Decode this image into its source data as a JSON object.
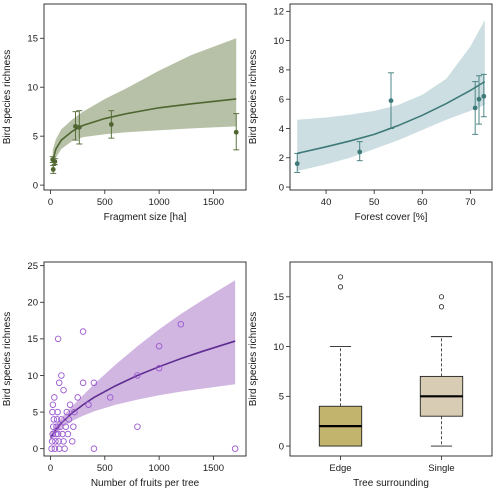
{
  "chart_data": [
    {
      "type": "scatter",
      "xlabel": "Fragment size [ha]",
      "ylabel": "Bird species richness",
      "xlim": [
        -60,
        1800
      ],
      "ylim": [
        -0.5,
        18.5
      ],
      "xticks": [
        0,
        500,
        1000,
        1500
      ],
      "yticks": [
        0,
        5,
        10,
        15
      ],
      "colors": {
        "point": "#4f6630",
        "line": "#4f6630",
        "band": "#aab698"
      },
      "points": [
        {
          "x": 20,
          "y": 2.6,
          "lo": 2.3,
          "hi": 2.9
        },
        {
          "x": 25,
          "y": 1.6,
          "lo": 1.2,
          "hi": 2.0
        },
        {
          "x": 40,
          "y": 2.4,
          "lo": 2.1,
          "hi": 2.7
        },
        {
          "x": 230,
          "y": 6.0,
          "lo": 4.6,
          "hi": 7.5
        },
        {
          "x": 265,
          "y": 5.9,
          "lo": 4.2,
          "hi": 7.6
        },
        {
          "x": 560,
          "y": 6.2,
          "lo": 4.8,
          "hi": 7.6
        },
        {
          "x": 1710,
          "y": 5.4,
          "lo": 3.6,
          "hi": 7.3
        }
      ],
      "fit": {
        "x": [
          20,
          50,
          100,
          200,
          300,
          500,
          700,
          1000,
          1300,
          1710
        ],
        "y": [
          2.5,
          3.7,
          4.6,
          5.5,
          6.1,
          6.8,
          7.3,
          7.9,
          8.3,
          8.8
        ],
        "lower": [
          1.6,
          2.8,
          3.7,
          4.5,
          4.9,
          5.2,
          5.4,
          5.6,
          5.8,
          6.0
        ],
        "upper": [
          3.6,
          4.7,
          5.7,
          6.7,
          7.5,
          8.8,
          9.9,
          11.7,
          13.3,
          15.0
        ]
      }
    },
    {
      "type": "scatter",
      "xlabel": "Forest cover [%]",
      "ylabel": "Bird species richness",
      "xlim": [
        32.5,
        74.5
      ],
      "ylim": [
        -0.2,
        12.5
      ],
      "xticks": [
        40,
        50,
        60,
        70
      ],
      "yticks": [
        0,
        2,
        4,
        6,
        8,
        10,
        12
      ],
      "colors": {
        "point": "#3e7a7a",
        "line": "#3e7a7a",
        "band": "#c3d8dc"
      },
      "points": [
        {
          "x": 34,
          "y": 1.6,
          "lo": 1.0,
          "hi": 2.3
        },
        {
          "x": 47,
          "y": 2.4,
          "lo": 1.8,
          "hi": 3.1
        },
        {
          "x": 53.5,
          "y": 5.9,
          "lo": 4.0,
          "hi": 7.8
        },
        {
          "x": 71,
          "y": 5.4,
          "lo": 3.6,
          "hi": 7.2
        },
        {
          "x": 71.8,
          "y": 6.0,
          "lo": 4.3,
          "hi": 7.6
        },
        {
          "x": 72.8,
          "y": 6.2,
          "lo": 4.8,
          "hi": 7.7
        }
      ],
      "fit": {
        "x": [
          34,
          40,
          45,
          50,
          55,
          60,
          65,
          70,
          73
        ],
        "y": [
          2.3,
          2.75,
          3.15,
          3.6,
          4.2,
          4.9,
          5.7,
          6.6,
          7.2
        ],
        "lower": [
          1.1,
          1.55,
          2.0,
          2.6,
          3.2,
          3.9,
          4.6,
          5.2,
          5.6
        ],
        "upper": [
          4.6,
          4.75,
          4.95,
          5.2,
          5.6,
          6.3,
          7.4,
          9.6,
          11.4
        ]
      }
    },
    {
      "type": "scatter",
      "xlabel": "Number of fruits per tree",
      "ylabel": "Bird species richness",
      "xlim": [
        -60,
        1800
      ],
      "ylim": [
        -1,
        25.5
      ],
      "xticks": [
        0,
        500,
        1000,
        1500
      ],
      "yticks": [
        0,
        5,
        10,
        15,
        20,
        25
      ],
      "colors": {
        "point": "#9b59d0",
        "line": "#5e2c91",
        "band": "#c9a9dc"
      },
      "points": [
        {
          "x": 10,
          "y": 0
        },
        {
          "x": 15,
          "y": 1
        },
        {
          "x": 20,
          "y": 2
        },
        {
          "x": 25,
          "y": 3
        },
        {
          "x": 30,
          "y": 4
        },
        {
          "x": 18,
          "y": 5
        },
        {
          "x": 22,
          "y": 6
        },
        {
          "x": 35,
          "y": 7
        },
        {
          "x": 40,
          "y": 0
        },
        {
          "x": 45,
          "y": 1
        },
        {
          "x": 50,
          "y": 2
        },
        {
          "x": 55,
          "y": 3
        },
        {
          "x": 60,
          "y": 4
        },
        {
          "x": 65,
          "y": 5
        },
        {
          "x": 70,
          "y": 2
        },
        {
          "x": 75,
          "y": 1
        },
        {
          "x": 80,
          "y": 0
        },
        {
          "x": 90,
          "y": 3
        },
        {
          "x": 100,
          "y": 4
        },
        {
          "x": 110,
          "y": 2
        },
        {
          "x": 120,
          "y": 1
        },
        {
          "x": 130,
          "y": 0
        },
        {
          "x": 140,
          "y": 3
        },
        {
          "x": 150,
          "y": 5
        },
        {
          "x": 160,
          "y": 2
        },
        {
          "x": 170,
          "y": 4
        },
        {
          "x": 180,
          "y": 6
        },
        {
          "x": 200,
          "y": 1
        },
        {
          "x": 210,
          "y": 3
        },
        {
          "x": 220,
          "y": 5
        },
        {
          "x": 70,
          "y": 15
        },
        {
          "x": 100,
          "y": 10
        },
        {
          "x": 80,
          "y": 9
        },
        {
          "x": 120,
          "y": 8
        },
        {
          "x": 300,
          "y": 16
        },
        {
          "x": 300,
          "y": 9
        },
        {
          "x": 250,
          "y": 7
        },
        {
          "x": 350,
          "y": 6
        },
        {
          "x": 400,
          "y": 9
        },
        {
          "x": 400,
          "y": 0
        },
        {
          "x": 550,
          "y": 7
        },
        {
          "x": 800,
          "y": 10
        },
        {
          "x": 800,
          "y": 3
        },
        {
          "x": 1000,
          "y": 11
        },
        {
          "x": 1000,
          "y": 14
        },
        {
          "x": 1200,
          "y": 17
        },
        {
          "x": 1700,
          "y": 0
        }
      ],
      "fit": {
        "x": [
          0,
          50,
          100,
          200,
          300,
          400,
          600,
          800,
          1000,
          1200,
          1400,
          1700
        ],
        "y": [
          1.5,
          2.6,
          3.5,
          4.9,
          6.0,
          7.0,
          8.6,
          10.0,
          11.2,
          12.3,
          13.3,
          14.7
        ],
        "lower": [
          1.0,
          2.0,
          2.8,
          3.8,
          4.5,
          5.1,
          6.0,
          6.7,
          7.3,
          7.8,
          8.2,
          8.8
        ],
        "upper": [
          2.1,
          3.3,
          4.2,
          5.8,
          7.3,
          8.8,
          11.5,
          14.0,
          16.3,
          18.4,
          20.3,
          23.0
        ]
      }
    },
    {
      "type": "box",
      "xlabel": "Tree surrounding",
      "ylabel": "Bird species richness",
      "ylim": [
        -1,
        18.5
      ],
      "yticks": [
        0,
        5,
        10,
        15
      ],
      "categories": [
        "Edge",
        "Single"
      ],
      "colors": [
        "#c2b46c",
        "#d8ccb4"
      ],
      "boxes": [
        {
          "whisker_low": 0,
          "q1": 0,
          "median": 2,
          "q3": 4,
          "whisker_high": 10,
          "outliers": [
            16,
            17
          ]
        },
        {
          "whisker_low": 0,
          "q1": 3,
          "median": 5,
          "q3": 7,
          "whisker_high": 11,
          "outliers": [
            14,
            15
          ]
        }
      ]
    }
  ]
}
